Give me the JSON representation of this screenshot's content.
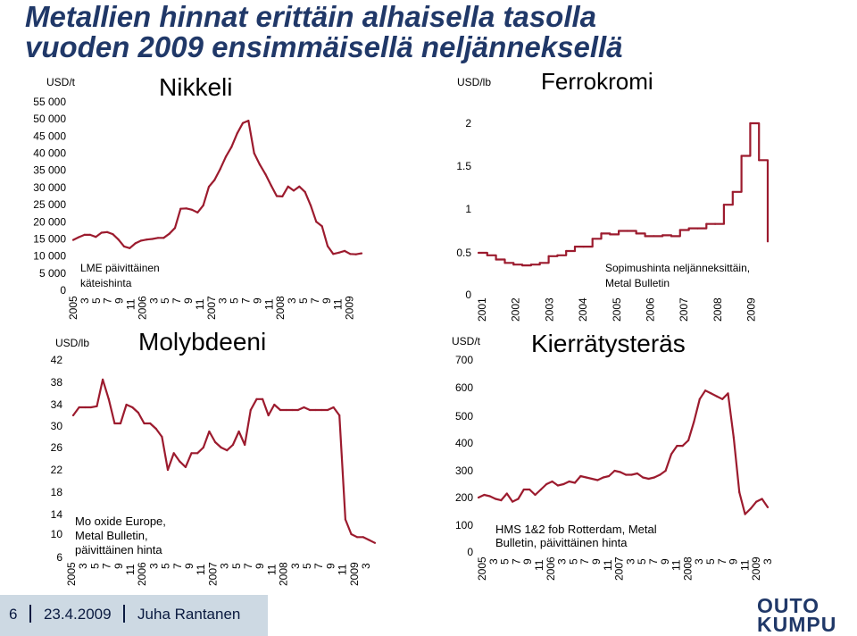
{
  "headline": {
    "line1": "Metallien hinnat erittäin alhaisella tasolla",
    "line2": "vuoden 2009 ensimmäisellä neljänneksellä"
  },
  "colors": {
    "title": "#203868",
    "series": "#9c1b2e",
    "footer_bg": "#cdd9e3"
  },
  "footer": {
    "page": "6",
    "date": "23.4.2009",
    "author": "Juha Rantanen"
  },
  "logo": {
    "line1": "OUTO",
    "line2": "KUMPU"
  },
  "chart_data": [
    {
      "id": "nickel",
      "type": "line",
      "title": "Nikkeli",
      "unit": "USD/t",
      "note_lines": [
        "LME päivittäinen",
        "käteishinta"
      ],
      "yticks": [
        "55 000",
        "50 000",
        "45 000",
        "40 000",
        "35 000",
        "30 000",
        "25 000",
        "20 000",
        "15 000",
        "10 000",
        "5 000",
        "0"
      ],
      "ylim": [
        0,
        55000
      ],
      "xticks": [
        "2005",
        "3",
        "5",
        "7",
        "9",
        "11",
        "2006",
        "3",
        "5",
        "7",
        "9",
        "11",
        "2007",
        "3",
        "5",
        "7",
        "9",
        "11",
        "2008",
        "3",
        "5",
        "7",
        "9",
        "11",
        "2009"
      ],
      "xlim": [
        0,
        51
      ],
      "x": [
        0,
        1,
        2,
        3,
        4,
        5,
        6,
        7,
        8,
        9,
        10,
        11,
        12,
        13,
        14,
        15,
        16,
        17,
        18,
        19,
        20,
        21,
        22,
        23,
        24,
        25,
        26,
        27,
        28,
        29,
        30,
        31,
        32,
        33,
        34,
        35,
        36,
        37,
        38,
        39,
        40,
        41,
        42,
        43,
        44,
        45,
        46,
        47,
        48,
        49,
        50,
        51
      ],
      "values": [
        14700,
        15500,
        16200,
        16200,
        15600,
        16800,
        17000,
        16400,
        14800,
        12800,
        12300,
        13700,
        14500,
        14800,
        15000,
        15300,
        15300,
        16500,
        18200,
        23800,
        23900,
        23500,
        22700,
        24800,
        30200,
        32200,
        35400,
        39000,
        41800,
        45800,
        48800,
        49500,
        40000,
        36700,
        33900,
        30600,
        27500,
        27400,
        30300,
        29100,
        30300,
        28700,
        24800,
        20000,
        18700,
        12900,
        10600,
        11000,
        11500,
        10600,
        10500,
        10800
      ],
      "grid": false,
      "legend": "none"
    },
    {
      "id": "ferrochrome",
      "type": "line",
      "step": true,
      "title": "Ferrokromi",
      "unit": "USD/lb",
      "note_lines": [
        "Sopimushinta neljänneksittäin,",
        "Metal Bulletin"
      ],
      "yticks": [
        "2",
        "1.5",
        "1",
        "0.5",
        "0"
      ],
      "ylim": [
        0,
        2.3
      ],
      "xticks": [
        "2001",
        "2002",
        "2003",
        "2004",
        "2005",
        "2006",
        "2007",
        "2008",
        "2009"
      ],
      "xlim": [
        0,
        8.3
      ],
      "x": [
        0,
        0.25,
        0.5,
        0.75,
        1.0,
        1.25,
        1.5,
        1.75,
        2.0,
        2.25,
        2.5,
        2.75,
        3.0,
        3.25,
        3.5,
        3.75,
        4.0,
        4.25,
        4.5,
        4.75,
        5.0,
        5.25,
        5.5,
        5.75,
        6.0,
        6.25,
        6.5,
        6.75,
        7.0,
        7.25,
        7.5,
        7.75,
        8.0,
        8.25
      ],
      "values": [
        0.5,
        0.47,
        0.42,
        0.38,
        0.36,
        0.35,
        0.36,
        0.38,
        0.46,
        0.47,
        0.52,
        0.57,
        0.57,
        0.66,
        0.72,
        0.71,
        0.75,
        0.75,
        0.72,
        0.69,
        0.69,
        0.7,
        0.69,
        0.76,
        0.78,
        0.78,
        0.83,
        0.83,
        1.05,
        1.2,
        1.62,
        2.06,
        1.57,
        0.63
      ],
      "grid": false,
      "legend": "none"
    },
    {
      "id": "molybdenum",
      "type": "line",
      "title": "Molybdeeni",
      "unit": "USD/lb",
      "note_lines": [
        "Mo oxide Europe,",
        "Metal Bulletin,",
        "päivittäinen hinta"
      ],
      "yticks": [
        "42",
        "38",
        "34",
        "30",
        "26",
        "22",
        "18",
        "14",
        "10",
        "6"
      ],
      "ylim": [
        6,
        42
      ],
      "xticks": [
        "2005",
        "3",
        "5",
        "7",
        "9",
        "11",
        "2006",
        "3",
        "5",
        "7",
        "9",
        "11",
        "2007",
        "3",
        "5",
        "7",
        "9",
        "11",
        "2008",
        "3",
        "5",
        "7",
        "9",
        "11",
        "2009",
        "3"
      ],
      "xlim": [
        0,
        51
      ],
      "x": [
        0,
        1,
        2,
        3,
        4,
        5,
        6,
        7,
        8,
        9,
        10,
        11,
        12,
        13,
        14,
        15,
        16,
        17,
        18,
        19,
        20,
        21,
        22,
        23,
        24,
        25,
        26,
        27,
        28,
        29,
        30,
        31,
        32,
        33,
        34,
        35,
        36,
        37,
        38,
        39,
        40,
        41,
        42,
        43,
        44,
        45,
        46,
        47,
        48,
        49,
        50,
        51
      ],
      "values": [
        32,
        33.5,
        33.5,
        33.5,
        33.7,
        38.5,
        35,
        30.5,
        30.5,
        34,
        33.5,
        32.5,
        30.5,
        30.5,
        29.5,
        28,
        22,
        25,
        23.5,
        22.5,
        25,
        25,
        26,
        29,
        27,
        26,
        25.5,
        26.5,
        29,
        26.5,
        33,
        35,
        35,
        32,
        34,
        33,
        33,
        33,
        33,
        33.5,
        33,
        33,
        33,
        33,
        33.5,
        32,
        13,
        10,
        9.5,
        9.5,
        9,
        8.5
      ],
      "grid": false,
      "legend": "none"
    },
    {
      "id": "scrap",
      "type": "line",
      "title": "Kierrätysteräs",
      "unit": "USD/t",
      "note_lines": [
        "HMS 1&2 fob Rotterdam, Metal",
        "Bulletin, päivittäinen hinta"
      ],
      "yticks": [
        "700",
        "600",
        "500",
        "400",
        "300",
        "200",
        "100",
        "0"
      ],
      "ylim": [
        0,
        730
      ],
      "xticks": [
        "2005",
        "3",
        "5",
        "7",
        "9",
        "11",
        "2006",
        "3",
        "5",
        "7",
        "9",
        "11",
        "2007",
        "3",
        "5",
        "7",
        "9",
        "11",
        "2008",
        "3",
        "5",
        "7",
        "9",
        "11",
        "2009",
        "3"
      ],
      "xlim": [
        0,
        51
      ],
      "x": [
        0,
        1,
        2,
        3,
        4,
        5,
        6,
        7,
        8,
        9,
        10,
        11,
        12,
        13,
        14,
        15,
        16,
        17,
        18,
        19,
        20,
        21,
        22,
        23,
        24,
        25,
        26,
        27,
        28,
        29,
        30,
        31,
        32,
        33,
        34,
        35,
        36,
        37,
        38,
        39,
        40,
        41,
        42,
        43,
        44,
        45,
        46,
        47,
        48,
        49,
        50,
        51
      ],
      "values": [
        200,
        210,
        205,
        195,
        190,
        215,
        185,
        195,
        230,
        230,
        210,
        230,
        250,
        260,
        245,
        250,
        260,
        255,
        280,
        275,
        270,
        265,
        275,
        280,
        300,
        295,
        285,
        285,
        290,
        275,
        270,
        275,
        285,
        300,
        360,
        390,
        390,
        410,
        480,
        560,
        590,
        580,
        570,
        560,
        580,
        420,
        220,
        140,
        160,
        185,
        195,
        165
      ],
      "grid": false,
      "legend": "none"
    }
  ]
}
